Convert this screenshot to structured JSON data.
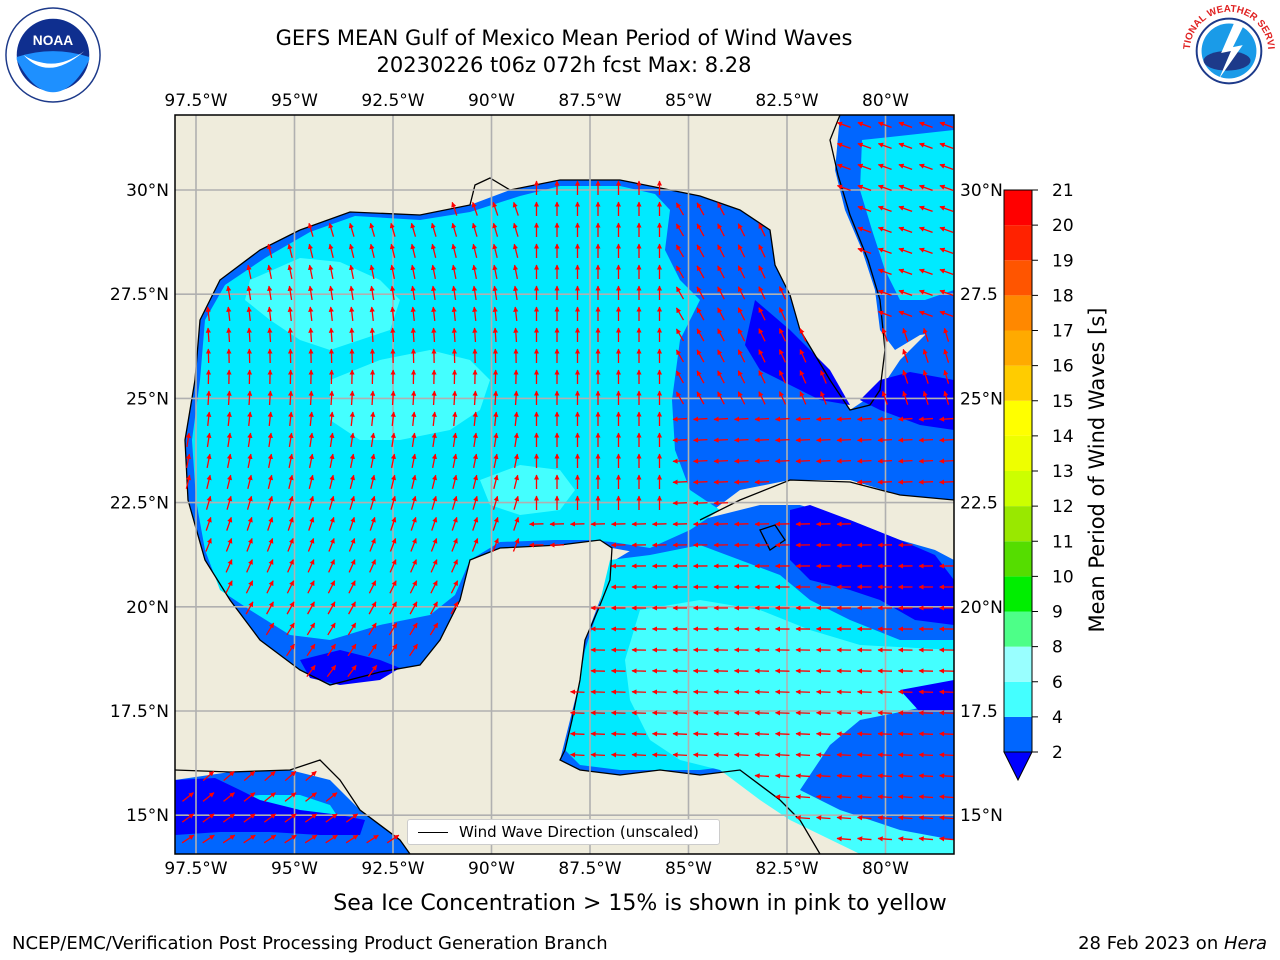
{
  "title": {
    "line1": "GEFS MEAN Gulf of Mexico Mean Period of Wind Waves",
    "line2": "20230226 t06z 072h fcst   Max: 8.28"
  },
  "logos": {
    "left": "NOAA",
    "left_ring_text": "NATIONAL OCEANIC AND ATMOSPHERIC ADMINISTRATION · U.S. DEPARTMENT OF COMMERCE",
    "right_ring_text": "NATIONAL WEATHER SERVICE"
  },
  "map": {
    "lon_ticks": [
      "97.5°W",
      "95°W",
      "92.5°W",
      "90°W",
      "87.5°W",
      "85°W",
      "82.5°W",
      "80°W"
    ],
    "lat_ticks_left": [
      "30°N",
      "27.5°N",
      "25°N",
      "22.5°N",
      "20°N",
      "17.5°N",
      "15°N"
    ],
    "lat_ticks_right": [
      "30°N",
      "27.5",
      "25°N",
      "22.5",
      "20°N",
      "17.5",
      "15°N"
    ],
    "land_color": "#efecdc",
    "arrow_color": "#ff0000"
  },
  "legend": {
    "label": "Wind Wave Direction (unscaled)"
  },
  "colorbar": {
    "label": "Mean Period of Wind Waves [s]",
    "ticks": [
      "2",
      "4",
      "6",
      "8",
      "9",
      "10",
      "11",
      "12",
      "13",
      "14",
      "15",
      "16",
      "17",
      "18",
      "19",
      "20",
      "21"
    ],
    "colors": [
      "#0066ff",
      "#00eaff",
      "#44ffff",
      "#99ffff",
      "#4dff88",
      "#00ee00",
      "#55dd00",
      "#99e800",
      "#ccff00",
      "#eeff00",
      "#ffff00",
      "#ffcc00",
      "#ffaa00",
      "#ff8800",
      "#ff5500",
      "#ff2200",
      "#ff0000"
    ],
    "under_color": "#0000ff"
  },
  "footer": {
    "note": "Sea Ice Concentration > 15% is shown in pink to yellow",
    "credit_left": "NCEP/EMC/Verification Post Processing Product Generation Branch",
    "credit_date": "28 Feb 2023 on ",
    "credit_host": "Hera"
  }
}
